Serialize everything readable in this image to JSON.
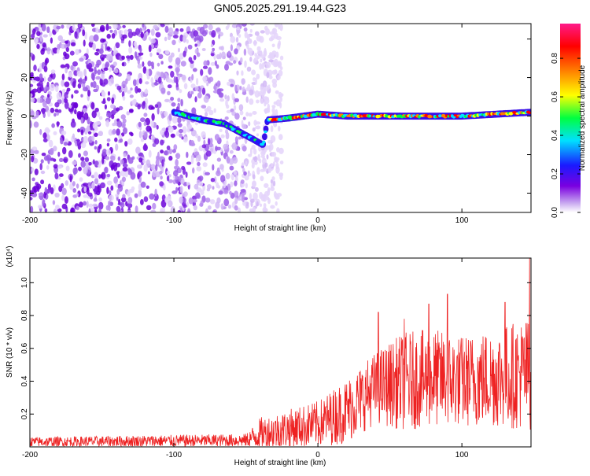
{
  "title": "GN05.2025.291.19.44.G23",
  "chart_data": [
    {
      "type": "heatmap",
      "title": "GN05.2025.291.19.44.G23",
      "xlabel": "Height of straight line (km)",
      "ylabel": "Frequency (Hz)",
      "xlim": [
        -200,
        148
      ],
      "ylim": [
        -50,
        48
      ],
      "x_ticks": [
        -200,
        -100,
        0,
        100
      ],
      "x_tick_labels": [
        "-200",
        "-100",
        "0",
        "100"
      ],
      "y_ticks": [
        -40,
        -20,
        0,
        20,
        40
      ],
      "y_tick_labels": [
        "-40",
        "-20",
        "0",
        "20",
        "40"
      ],
      "colorbar": {
        "label": "Normalized spectral amplitude",
        "range": [
          0,
          0.98
        ],
        "ticks": [
          0.0,
          0.2,
          0.4,
          0.6,
          0.8
        ],
        "tick_labels": [
          "0.0",
          "0.2",
          "0.4",
          "0.6",
          "0.8"
        ],
        "colors": [
          "#ffffff",
          "#7a00e0",
          "#1a1aff",
          "#00e0ff",
          "#00ff40",
          "#ffff00",
          "#ff7f00",
          "#ff0000",
          "#ff1a8a"
        ]
      },
      "features": {
        "noise_region_x": [
          -200,
          -30
        ],
        "signal_track": [
          {
            "x": -100,
            "freq": 2
          },
          {
            "x": -80,
            "freq": -2
          },
          {
            "x": -65,
            "freq": -4
          },
          {
            "x": -55,
            "freq": -8
          },
          {
            "x": -45,
            "freq": -12
          },
          {
            "x": -38,
            "freq": -15
          },
          {
            "x": -35,
            "freq": -2
          },
          {
            "x": -20,
            "freq": -1
          },
          {
            "x": 0,
            "freq": 1
          },
          {
            "x": 20,
            "freq": 0
          },
          {
            "x": 60,
            "freq": 0
          },
          {
            "x": 100,
            "freq": 0
          },
          {
            "x": 148,
            "freq": 2
          }
        ]
      }
    },
    {
      "type": "line",
      "xlabel": "Height of straight line (km)",
      "ylabel": "SNR (10 * v/v)",
      "y_scale_label": "(x10⁴)",
      "xlim": [
        -200,
        148
      ],
      "ylim": [
        0,
        1.15
      ],
      "x_ticks": [
        -200,
        -100,
        0,
        100
      ],
      "x_tick_labels": [
        "-200",
        "-100",
        "0",
        "100"
      ],
      "y_ticks": [
        0.2,
        0.4,
        0.6,
        0.8,
        1.0
      ],
      "y_tick_labels": [
        "0.2",
        "0.4",
        "0.6",
        "0.8",
        "1.0"
      ],
      "line_color": "#ee2222",
      "envelope": [
        {
          "x": -200,
          "base": 0.03,
          "amp": 0.03
        },
        {
          "x": -50,
          "base": 0.04,
          "amp": 0.04
        },
        {
          "x": -40,
          "base": 0.08,
          "amp": 0.1
        },
        {
          "x": 0,
          "base": 0.14,
          "amp": 0.14
        },
        {
          "x": 20,
          "base": 0.22,
          "amp": 0.2
        },
        {
          "x": 40,
          "base": 0.36,
          "amp": 0.22
        },
        {
          "x": 60,
          "base": 0.4,
          "amp": 0.3
        },
        {
          "x": 80,
          "base": 0.42,
          "amp": 0.3
        },
        {
          "x": 100,
          "base": 0.4,
          "amp": 0.28
        },
        {
          "x": 120,
          "base": 0.42,
          "amp": 0.3
        },
        {
          "x": 148,
          "base": 0.45,
          "amp": 0.35
        }
      ],
      "peaks": [
        {
          "x": 42,
          "y": 0.82
        },
        {
          "x": 60,
          "y": 0.78
        },
        {
          "x": 77,
          "y": 0.87
        },
        {
          "x": 90,
          "y": 0.93
        },
        {
          "x": 130,
          "y": 0.88
        },
        {
          "x": 147,
          "y": 1.15
        }
      ]
    }
  ]
}
